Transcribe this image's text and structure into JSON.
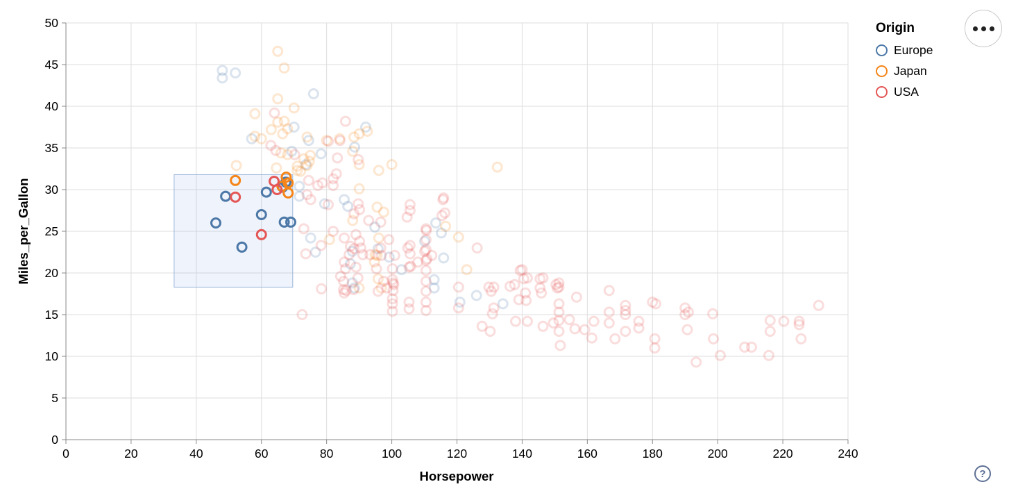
{
  "axes": {
    "x": {
      "title": "Horsepower",
      "domain": [
        0,
        240
      ],
      "ticks": [
        0,
        20,
        40,
        60,
        80,
        100,
        120,
        140,
        160,
        180,
        200,
        220,
        240
      ]
    },
    "y": {
      "title": "Miles_per_Gallon",
      "domain": [
        0,
        50
      ],
      "ticks": [
        0,
        5,
        10,
        15,
        20,
        25,
        30,
        35,
        40,
        45,
        50
      ]
    }
  },
  "legend": {
    "title": "Origin",
    "items": [
      {
        "label": "Europe",
        "color": "#4c78a8"
      },
      {
        "label": "Japan",
        "color": "#f58518"
      },
      {
        "label": "USA",
        "color": "#e45756"
      }
    ]
  },
  "controls": {
    "menu_icon": "ellipsis-menu",
    "help_icon": "?"
  },
  "style": {
    "grid_color": "#dddddd",
    "axis_color": "#888888",
    "label_color": "#000000",
    "brush_fill": "rgba(120,160,220,0.12)",
    "brush_stroke": "rgba(140,170,215,0.85)",
    "faded_opacity": 0.2,
    "point_radius": 6.5,
    "point_stroke_width": 3,
    "help_color": "#5d6f94"
  },
  "chart_data": {
    "type": "scatter",
    "title": "",
    "xlabel": "Horsepower",
    "ylabel": "Miles_per_Gallon",
    "xlim": [
      0,
      240
    ],
    "ylim": [
      0,
      50
    ],
    "grid": true,
    "legend_position": "top-right",
    "brush_selection": {
      "x": [
        33.2,
        69.6
      ],
      "y": [
        18.3,
        31.8
      ]
    },
    "series": [
      {
        "name": "Europe",
        "color": "#4c78a8",
        "points": [
          [
            48,
            44.3
          ],
          [
            48,
            43.4
          ],
          [
            52,
            44
          ],
          [
            76,
            41.5
          ],
          [
            57,
            36.1
          ],
          [
            70,
            37.5
          ],
          [
            74.5,
            35.9
          ],
          [
            78.3,
            34.3
          ],
          [
            69.3,
            34.6
          ],
          [
            73.6,
            33
          ],
          [
            88.6,
            35.1
          ],
          [
            92,
            37.5
          ],
          [
            71.6,
            30.4
          ],
          [
            71.6,
            29.2
          ],
          [
            79.4,
            28.3
          ],
          [
            85.4,
            28.8
          ],
          [
            86.5,
            28
          ],
          [
            94.8,
            25.5
          ],
          [
            95.8,
            22.9
          ],
          [
            99.2,
            21.9
          ],
          [
            87.9,
            22.6
          ],
          [
            87.3,
            21.1
          ],
          [
            103,
            20.4
          ],
          [
            87.9,
            18.8
          ],
          [
            88.5,
            18.2
          ],
          [
            76.6,
            22.5
          ],
          [
            75.1,
            24.2
          ],
          [
            113.5,
            26
          ],
          [
            115.2,
            24.8
          ],
          [
            110.1,
            23.8
          ],
          [
            115.9,
            21.8
          ],
          [
            113,
            19.2
          ],
          [
            113,
            18.2
          ],
          [
            120.9,
            16.5
          ],
          [
            126,
            17.3
          ],
          [
            134.1,
            16.3
          ]
        ],
        "selected_points": [
          [
            46,
            26
          ],
          [
            49,
            29.2
          ],
          [
            54,
            23.1
          ],
          [
            60,
            27
          ],
          [
            61.5,
            29.7
          ],
          [
            66.5,
            30.3
          ],
          [
            67.5,
            30.9
          ],
          [
            67,
            26.1
          ],
          [
            69,
            26.1
          ]
        ]
      },
      {
        "name": "Japan",
        "color": "#f58518",
        "points": [
          [
            65,
            46.6
          ],
          [
            67,
            44.6
          ],
          [
            65,
            40.9
          ],
          [
            70,
            39.8
          ],
          [
            58,
            39.1
          ],
          [
            65,
            38.1
          ],
          [
            67,
            38.2
          ],
          [
            68,
            37.3
          ],
          [
            63,
            37.2
          ],
          [
            66.5,
            36.7
          ],
          [
            58,
            36.4
          ],
          [
            60,
            36.1
          ],
          [
            74,
            36.3
          ],
          [
            80,
            35.9
          ],
          [
            84,
            36.1
          ],
          [
            88.4,
            36.3
          ],
          [
            90,
            36.7
          ],
          [
            92.5,
            37
          ],
          [
            66,
            34.4
          ],
          [
            68,
            34.2
          ],
          [
            71,
            32.8
          ],
          [
            72,
            32.2
          ],
          [
            73,
            33.7
          ],
          [
            74.7,
            33.4
          ],
          [
            75,
            34.1
          ],
          [
            74,
            32.9
          ],
          [
            88,
            34.6
          ],
          [
            90,
            33
          ],
          [
            96,
            32.3
          ],
          [
            100,
            33
          ],
          [
            132.4,
            32.7
          ],
          [
            90,
            30.1
          ],
          [
            95.5,
            27.9
          ],
          [
            97.5,
            27.3
          ],
          [
            88,
            26.3
          ],
          [
            96,
            24.2
          ],
          [
            95.5,
            22.1
          ],
          [
            94.9,
            22.2
          ],
          [
            94.7,
            21.3
          ],
          [
            95.8,
            19.3
          ],
          [
            96.8,
            18.2
          ],
          [
            90,
            18.2
          ],
          [
            116.5,
            25.6
          ],
          [
            120.5,
            24.3
          ],
          [
            123,
            20.4
          ],
          [
            52.3,
            32.9
          ],
          [
            64.6,
            32.6
          ],
          [
            71,
            32.3
          ],
          [
            80.9,
            24
          ]
        ],
        "selected_points": [
          [
            52,
            31.1
          ],
          [
            67.6,
            31.5
          ],
          [
            68.2,
            30.8
          ],
          [
            66.3,
            30.4
          ],
          [
            68.2,
            29.6
          ]
        ]
      },
      {
        "name": "USA",
        "color": "#e45756",
        "points": [
          [
            64,
            39.2
          ],
          [
            62.9,
            35.3
          ],
          [
            64.4,
            34.7
          ],
          [
            70.2,
            34.2
          ],
          [
            72.5,
            15
          ],
          [
            73,
            25.3
          ],
          [
            73.6,
            22.3
          ],
          [
            74,
            29.4
          ],
          [
            74.5,
            31.1
          ],
          [
            75.1,
            28.8
          ],
          [
            77.3,
            30.5
          ],
          [
            78.3,
            23.3
          ],
          [
            78.4,
            18.1
          ],
          [
            78.7,
            30.8
          ],
          [
            80.5,
            35.8
          ],
          [
            80.5,
            28.2
          ],
          [
            82,
            30.5
          ],
          [
            82,
            25
          ],
          [
            82,
            31.3
          ],
          [
            83,
            31.9
          ],
          [
            83.3,
            33.8
          ],
          [
            84.1,
            35.9
          ],
          [
            84.3,
            19.6
          ],
          [
            85.2,
            19
          ],
          [
            85.2,
            18
          ],
          [
            85.4,
            24.2
          ],
          [
            85.4,
            21.3
          ],
          [
            85.4,
            17.6
          ],
          [
            85.8,
            38.2
          ],
          [
            85.8,
            20.5
          ],
          [
            86,
            17.9
          ],
          [
            86.9,
            22.2
          ],
          [
            87.3,
            23.2
          ],
          [
            88.3,
            18
          ],
          [
            88.4,
            27.1
          ],
          [
            88.4,
            22.9
          ],
          [
            89,
            24.6
          ],
          [
            89,
            20.7
          ],
          [
            89.6,
            19.4
          ],
          [
            89.7,
            33.6
          ],
          [
            89.7,
            28.3
          ],
          [
            90.1,
            27.6
          ],
          [
            90.1,
            23.8
          ],
          [
            90.5,
            23
          ],
          [
            91.1,
            22.2
          ],
          [
            92.9,
            26.3
          ],
          [
            93.3,
            22.2
          ],
          [
            95.3,
            20.5
          ],
          [
            95.8,
            17.8
          ],
          [
            96.6,
            26.1
          ],
          [
            96.6,
            23
          ],
          [
            96.8,
            22.1
          ],
          [
            97.5,
            19
          ],
          [
            98.5,
            18.2
          ],
          [
            99.1,
            24
          ],
          [
            100.2,
            20.5
          ],
          [
            100.2,
            19.2
          ],
          [
            100.2,
            16.9
          ],
          [
            100.2,
            16.3
          ],
          [
            100.2,
            15.4
          ],
          [
            100.4,
            18.8
          ],
          [
            100.4,
            17.9
          ],
          [
            100.6,
            18.6
          ],
          [
            100.9,
            22.1
          ],
          [
            104.9,
            23
          ],
          [
            105.3,
            20.7
          ],
          [
            105.3,
            16.5
          ],
          [
            105.3,
            15.7
          ],
          [
            105.6,
            28.2
          ],
          [
            105.6,
            27.5
          ],
          [
            105.6,
            23.3
          ],
          [
            105.6,
            22.3
          ],
          [
            104.7,
            26.7
          ],
          [
            105.8,
            20.8
          ],
          [
            108,
            21.3
          ],
          [
            110.5,
            25.3
          ],
          [
            110.5,
            24
          ],
          [
            110.5,
            22.8
          ],
          [
            110.5,
            21.5
          ],
          [
            110.5,
            20.3
          ],
          [
            110.5,
            19
          ],
          [
            110.5,
            17.8
          ],
          [
            110.5,
            16.5
          ],
          [
            110.5,
            15.5
          ],
          [
            110.1,
            22.6
          ],
          [
            110.6,
            25.1
          ],
          [
            110.8,
            21.7
          ],
          [
            112.3,
            22.1
          ],
          [
            115.4,
            26.9
          ],
          [
            115.7,
            28.8
          ],
          [
            115.9,
            29
          ],
          [
            116.3,
            27.2
          ],
          [
            120.5,
            18.3
          ],
          [
            120.5,
            15.8
          ],
          [
            126.2,
            23
          ],
          [
            127.7,
            13.6
          ],
          [
            129.8,
            18.3
          ],
          [
            130.2,
            13
          ],
          [
            130.5,
            17.8
          ],
          [
            130.9,
            15.1
          ],
          [
            131.3,
            18.3
          ],
          [
            131.3,
            15.8
          ],
          [
            136.3,
            18.4
          ],
          [
            137.7,
            18.6
          ],
          [
            138,
            14.2
          ],
          [
            139,
            16.8
          ],
          [
            139.4,
            20.3
          ],
          [
            140,
            20.4
          ],
          [
            140.5,
            19.3
          ],
          [
            141,
            17.6
          ],
          [
            141.2,
            16.7
          ],
          [
            141.6,
            19.4
          ],
          [
            141.6,
            14.2
          ],
          [
            145.5,
            19.3
          ],
          [
            145.5,
            18.2
          ],
          [
            145.9,
            17.6
          ],
          [
            146.4,
            19.4
          ],
          [
            146.4,
            13.6
          ],
          [
            149.6,
            14
          ],
          [
            150.4,
            18.6
          ],
          [
            150.8,
            18.2
          ],
          [
            151.3,
            18.8
          ],
          [
            151.3,
            18.3
          ],
          [
            151.3,
            16.3
          ],
          [
            151.3,
            15.3
          ],
          [
            151.3,
            14.3
          ],
          [
            151.3,
            13
          ],
          [
            151.7,
            11.3
          ],
          [
            154.5,
            14.4
          ],
          [
            156.2,
            13.3
          ],
          [
            156.7,
            17.1
          ],
          [
            159.2,
            13.2
          ],
          [
            161.4,
            12.2
          ],
          [
            162,
            14.2
          ],
          [
            166.7,
            17.9
          ],
          [
            166.7,
            15.3
          ],
          [
            166.7,
            14
          ],
          [
            168.5,
            12.1
          ],
          [
            171.7,
            16.1
          ],
          [
            171.7,
            15.5
          ],
          [
            171.7,
            15
          ],
          [
            171.7,
            13
          ],
          [
            175.8,
            14.2
          ],
          [
            175.8,
            13.4
          ],
          [
            180,
            16.5
          ],
          [
            181,
            16.3
          ],
          [
            180.7,
            12.1
          ],
          [
            180.7,
            11
          ],
          [
            190,
            15.8
          ],
          [
            190,
            15
          ],
          [
            191,
            15.3
          ],
          [
            190.7,
            13.2
          ],
          [
            193.4,
            9.3
          ],
          [
            198.5,
            15.1
          ],
          [
            198.7,
            12.1
          ],
          [
            200.8,
            10.1
          ],
          [
            208.3,
            11.1
          ],
          [
            210.4,
            11.1
          ],
          [
            215.7,
            10.1
          ],
          [
            216.1,
            14.3
          ],
          [
            216.1,
            13
          ],
          [
            220.3,
            14.2
          ],
          [
            225,
            14.2
          ],
          [
            225,
            13.8
          ],
          [
            225.6,
            12.1
          ],
          [
            231,
            16.1
          ]
        ],
        "selected_points": [
          [
            52,
            29.1
          ],
          [
            60,
            24.6
          ],
          [
            63.9,
            31
          ],
          [
            64.8,
            30
          ]
        ]
      }
    ]
  }
}
